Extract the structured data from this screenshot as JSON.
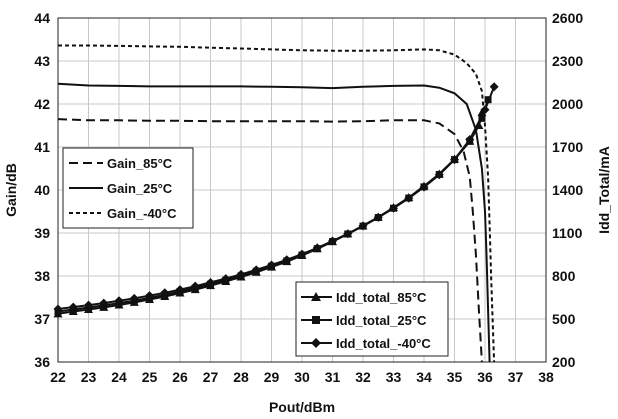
{
  "chart_data": {
    "type": "line",
    "title": "",
    "xlabel": "Pout/dBm",
    "ylabel_left": "Gain/dB",
    "ylabel_right": "Idd_Total/mA",
    "xlim": [
      22,
      38
    ],
    "ylim_left": [
      36,
      44
    ],
    "ylim_right": [
      200,
      2600
    ],
    "x_ticks": [
      "22",
      "23",
      "24",
      "25",
      "26",
      "27",
      "28",
      "29",
      "30",
      "31",
      "32",
      "33",
      "34",
      "35",
      "36",
      "37",
      "38"
    ],
    "y_left_ticks": [
      "36",
      "37",
      "38",
      "39",
      "40",
      "41",
      "42",
      "43",
      "44"
    ],
    "y_right_ticks": [
      "200",
      "500",
      "800",
      "1100",
      "1400",
      "1700",
      "2000",
      "2300",
      "2600"
    ],
    "grid": true,
    "gain_series": [
      {
        "name": "Gain_85°C",
        "style": "long-dash",
        "axis": "left",
        "x": [
          22,
          23,
          24,
          25,
          26,
          27,
          28,
          29,
          30,
          31,
          32,
          33,
          34,
          34.5,
          35,
          35.3,
          35.5,
          35.6,
          35.7,
          35.8,
          35.9
        ],
        "y": [
          41.65,
          41.62,
          41.62,
          41.61,
          41.61,
          41.6,
          41.6,
          41.6,
          41.6,
          41.59,
          41.6,
          41.62,
          41.62,
          41.55,
          41.3,
          40.9,
          40.3,
          39.5,
          38.5,
          37.2,
          36.0
        ]
      },
      {
        "name": "Gain_25°C",
        "style": "solid",
        "axis": "left",
        "x": [
          22,
          23,
          24,
          25,
          26,
          27,
          28,
          29,
          30,
          31,
          32,
          33,
          34,
          34.5,
          35,
          35.4,
          35.7,
          35.9,
          36.0,
          36.05,
          36.1,
          36.15
        ],
        "y": [
          42.47,
          42.43,
          42.42,
          42.41,
          42.41,
          42.41,
          42.41,
          42.4,
          42.39,
          42.37,
          42.4,
          42.42,
          42.43,
          42.38,
          42.25,
          42.0,
          41.4,
          40.5,
          39.5,
          38.5,
          37.2,
          36.0
        ]
      },
      {
        "name": "Gain_-40°C",
        "style": "short-dash",
        "axis": "left",
        "x": [
          22,
          23,
          24,
          25,
          26,
          27,
          28,
          29,
          30,
          31,
          32,
          33,
          34,
          34.5,
          35,
          35.4,
          35.7,
          35.9,
          36.0,
          36.1,
          36.15,
          36.2,
          36.25,
          36.3
        ],
        "y": [
          43.36,
          43.36,
          43.35,
          43.34,
          43.33,
          43.31,
          43.29,
          43.27,
          43.25,
          43.24,
          43.24,
          43.25,
          43.27,
          43.25,
          43.15,
          42.95,
          42.7,
          42.3,
          41.5,
          40.3,
          39.2,
          38.0,
          37.0,
          36.0
        ]
      }
    ],
    "idd_series": [
      {
        "name": "Idd_total_85°C",
        "marker": "triangle",
        "axis": "right",
        "x": [
          22,
          22.5,
          23,
          23.5,
          24,
          24.5,
          25,
          25.5,
          26,
          26.5,
          27,
          27.5,
          28,
          28.5,
          29,
          29.5,
          30,
          30.5,
          31,
          31.5,
          32,
          32.5,
          33,
          33.5,
          34,
          34.5,
          35,
          35.5,
          35.8,
          35.9
        ],
        "y": [
          536,
          552,
          566,
          581,
          598,
          616,
          636,
          657,
          681,
          705,
          733,
          762,
          793,
          826,
          862,
          900,
          943,
          990,
          1040,
          1094,
          1150,
          1211,
          1277,
          1348,
          1427,
          1512,
          1615,
          1740,
          1850,
          1940
        ]
      },
      {
        "name": "Idd_total_25°C",
        "marker": "square",
        "axis": "right",
        "x": [
          22,
          22.5,
          23,
          23.5,
          24,
          24.5,
          25,
          25.5,
          26,
          26.5,
          27,
          27.5,
          28,
          28.5,
          29,
          29.5,
          30,
          30.5,
          31,
          31.5,
          32,
          32.5,
          33,
          33.5,
          34,
          34.5,
          35,
          35.5,
          35.9,
          36.1
        ],
        "y": [
          552,
          566,
          580,
          595,
          611,
          628,
          648,
          669,
          692,
          716,
          743,
          771,
          801,
          833,
          868,
          905,
          946,
          991,
          1040,
          1093,
          1148,
          1208,
          1273,
          1344,
          1422,
          1508,
          1612,
          1740,
          1900,
          2030
        ]
      },
      {
        "name": "Idd_total_-40°C",
        "marker": "diamond",
        "axis": "right",
        "x": [
          22,
          22.5,
          23,
          23.5,
          24,
          24.5,
          25,
          25.5,
          26,
          26.5,
          27,
          27.5,
          28,
          28.5,
          29,
          29.5,
          30,
          30.5,
          31,
          31.5,
          32,
          32.5,
          33,
          33.5,
          34,
          34.5,
          35,
          35.5,
          36.0,
          36.3
        ],
        "y": [
          570,
          583,
          597,
          611,
          627,
          644,
          663,
          683,
          705,
          729,
          755,
          782,
          811,
          843,
          877,
          913,
          953,
          996,
          1044,
          1095,
          1150,
          1209,
          1273,
          1343,
          1420,
          1506,
          1612,
          1752,
          1960,
          2120
        ]
      }
    ],
    "legend_gain": {
      "position": "middle-left",
      "entries": [
        "Gain_85°C",
        "Gain_25°C",
        "Gain_-40°C"
      ]
    },
    "legend_idd": {
      "position": "bottom-right",
      "entries": [
        "Idd_total_85°C",
        "Idd_total_25°C",
        "Idd_total_-40°C"
      ]
    }
  }
}
